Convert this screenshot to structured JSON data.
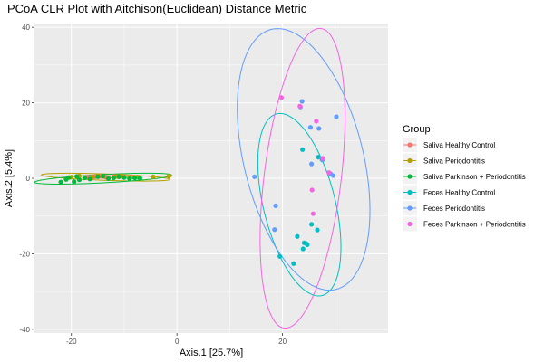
{
  "chart_data": {
    "type": "scatter",
    "title": "PCoA CLR Plot with Aitchison(Euclidean) Distance Metric",
    "xlabel": "Axis.1   [25.7%]",
    "ylabel": "Axis.2   [5.4%]",
    "xlim": [
      -27,
      40
    ],
    "ylim": [
      -41,
      41
    ],
    "x_ticks": [
      -20,
      0,
      20
    ],
    "y_ticks": [
      -40,
      -20,
      0,
      20,
      40
    ],
    "grid": true,
    "legend_title": "Group",
    "legend_position": "right",
    "series": [
      {
        "name": "Saliva Healthy Control",
        "color": "#F8766D",
        "points": [
          [
            -17,
            0.3
          ],
          [
            -16,
            0.4
          ],
          [
            -15.5,
            0.4
          ],
          [
            -14.5,
            0.5
          ],
          [
            -13.5,
            0.3
          ],
          [
            -12,
            0.5
          ],
          [
            -11,
            0.4
          ],
          [
            -10,
            0.4
          ],
          [
            -8.5,
            0.4
          ]
        ],
        "ellipse": {
          "cx": -12.5,
          "cy": 0.4,
          "rx": 4.8,
          "ry": 0.25,
          "angle_deg": 0
        }
      },
      {
        "name": "Saliva Periodontitis",
        "color": "#B79F00",
        "points": [
          [
            -20,
            0.3
          ],
          [
            -18.5,
            0.6
          ],
          [
            -16,
            0.3
          ],
          [
            -15,
            0.7
          ],
          [
            -14,
            0.5
          ],
          [
            -13,
            0.2
          ],
          [
            -11.5,
            0.5
          ],
          [
            -10.5,
            0.6
          ],
          [
            -9,
            0.2
          ],
          [
            -7.5,
            0.3
          ],
          [
            -4.5,
            0.4
          ],
          [
            -1.5,
            0.6
          ]
        ],
        "ellipse": {
          "cx": -13.5,
          "cy": 0.3,
          "rx": 12.2,
          "ry": 0.85,
          "angle_deg": -2
        }
      },
      {
        "name": "Saliva Parkinson + Periodontitis",
        "color": "#00BA38",
        "points": [
          [
            -22,
            -1.0
          ],
          [
            -21,
            -0.3
          ],
          [
            -20.5,
            0.2
          ],
          [
            -19.5,
            -0.9
          ],
          [
            -18.5,
            -0.4
          ],
          [
            -17.5,
            0.1
          ],
          [
            -16.5,
            -0.2
          ],
          [
            -15,
            0.4
          ],
          [
            -14,
            0.6
          ],
          [
            -13,
            -0.1
          ],
          [
            -12,
            0.1
          ],
          [
            -11,
            0.4
          ],
          [
            -10,
            0.2
          ],
          [
            -9,
            -0.1
          ],
          [
            -8,
            0.1
          ],
          [
            -7,
            0.0
          ],
          [
            -19,
            0.5
          ]
        ],
        "ellipse": {
          "cx": -14,
          "cy": -0.1,
          "rx": 13,
          "ry": 1.1,
          "angle_deg": 3
        }
      },
      {
        "name": "Feces Healthy Control",
        "color": "#00BFC4",
        "points": [
          [
            23.8,
            7.6
          ],
          [
            26.8,
            5.6
          ],
          [
            27.5,
            4.9
          ],
          [
            25.5,
            -12.2
          ],
          [
            26.6,
            -13.7
          ],
          [
            22.8,
            -15.4
          ],
          [
            24.1,
            -17.1
          ],
          [
            24.5,
            -17.3
          ],
          [
            24.7,
            -17.6
          ],
          [
            23.9,
            -18.7
          ],
          [
            19.5,
            -20.7
          ],
          [
            22.1,
            -22.6
          ]
        ],
        "ellipse": {
          "cx": 23.2,
          "cy": -7,
          "rx": 6.8,
          "ry": 24.8,
          "angle_deg": 14
        }
      },
      {
        "name": "Feces Periodontitis",
        "color": "#619CFF",
        "points": [
          [
            23.4,
            18.9
          ],
          [
            23.7,
            20.4
          ],
          [
            25.3,
            13.5
          ],
          [
            26.9,
            13.2
          ],
          [
            30.2,
            16.3
          ],
          [
            25.5,
            3.8
          ],
          [
            27.6,
            4.9
          ],
          [
            29.1,
            1.2
          ],
          [
            29.6,
            0.7
          ],
          [
            14.7,
            0.4
          ],
          [
            18.7,
            -7.3
          ],
          [
            18.5,
            -13.6
          ]
        ],
        "ellipse": {
          "cx": 24,
          "cy": 5,
          "rx": 11.3,
          "ry": 35.5,
          "angle_deg": 14
        }
      },
      {
        "name": "Feces Parkinson + Periodontitis",
        "color": "#F564E3",
        "points": [
          [
            19.8,
            21.4
          ],
          [
            23.3,
            19.1
          ],
          [
            26.4,
            15.1
          ],
          [
            27.6,
            5.3
          ],
          [
            28.8,
            1.5
          ],
          [
            25.6,
            -3.1
          ],
          [
            25.8,
            -9.4
          ]
        ],
        "ellipse": {
          "cx": 23.8,
          "cy": 0,
          "rx": 7.3,
          "ry": 40,
          "angle_deg": -7
        }
      }
    ]
  }
}
